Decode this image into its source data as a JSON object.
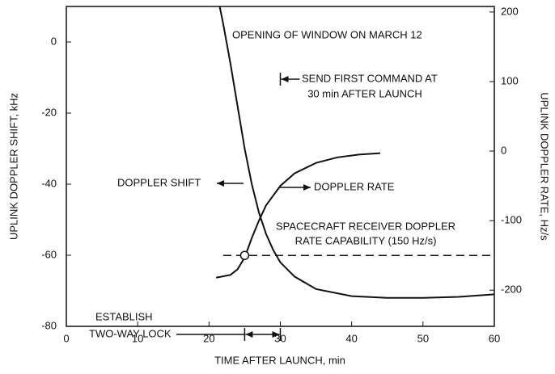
{
  "chart_data": {
    "type": "line",
    "xlabel": "TIME AFTER LAUNCH, min",
    "ylabel": "UPLINK DOPPLER SHIFT, kHz",
    "y2label": "UPLINK DOPPLER RATE, Hz/s",
    "xlim": [
      0,
      60
    ],
    "xticks": [
      0,
      10,
      20,
      30,
      40,
      50,
      60
    ],
    "ylim": [
      -80,
      10
    ],
    "yticks": [
      -80,
      -60,
      -40,
      -20,
      0
    ],
    "y2lim": [
      -252,
      208
    ],
    "y2ticks": [
      -200,
      -100,
      0,
      100,
      200
    ],
    "color": "#111111",
    "series": [
      {
        "name": "DOPPLER SHIFT",
        "color": "#111111",
        "x": [
          21.5,
          22,
          23,
          24,
          25,
          26,
          27,
          28,
          29,
          30,
          32,
          35,
          40,
          45,
          50,
          55,
          60
        ],
        "values": [
          10,
          5,
          -6,
          -18,
          -30,
          -40,
          -48,
          -54,
          -58.5,
          -62,
          -66,
          -69.5,
          -71.5,
          -72,
          -72,
          -71.7,
          -71
        ]
      },
      {
        "name": "DOPPLER RATE",
        "color": "#111111",
        "axis": "y2",
        "x": [
          21,
          23,
          24,
          25,
          26,
          27,
          28,
          30,
          32,
          35,
          38,
          41,
          44
        ],
        "values": [
          -182,
          -178,
          -170,
          -153,
          -125,
          -100,
          -78,
          -50,
          -32,
          -17,
          -9,
          -5,
          -3
        ]
      }
    ],
    "capability": -150,
    "capability_label": [
      "SPACECRAFT RECEIVER DOPPLER",
      "RATE CAPABILITY (150 Hz/s)"
    ],
    "lock_point": {
      "x": 25,
      "value": -150
    },
    "lock_window": [
      25,
      30
    ],
    "lock_label": [
      "ESTABLISH",
      "TWO-WAY LOCK"
    ],
    "command_time": 30,
    "command_label": [
      "SEND FIRST COMMAND AT",
      "30 min AFTER LAUNCH"
    ],
    "window_label": "OPENING OF WINDOW ON MARCH 12"
  }
}
